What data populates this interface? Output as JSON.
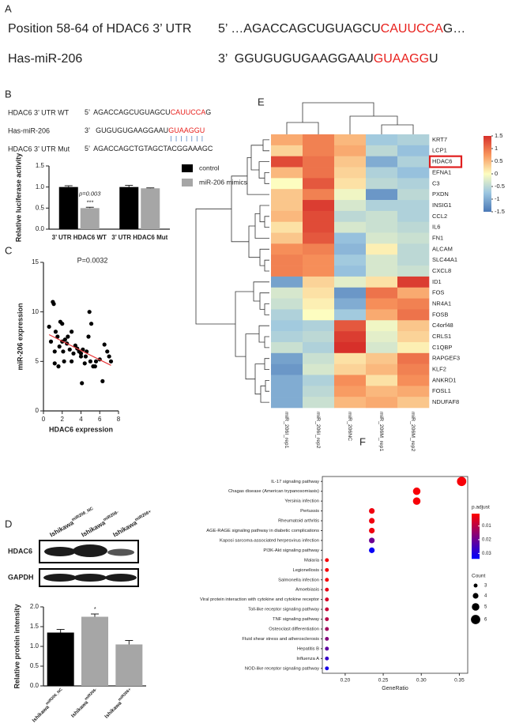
{
  "panel_labels": [
    "A",
    "B",
    "C",
    "D",
    "E",
    "F"
  ],
  "panel_a": {
    "rows": [
      {
        "name": "Position 58-64 of HDAC6 3’ UTR",
        "seq_pre": "5’ …AGACCAGCUGUAGCU",
        "seq_site": "CAUUCCA",
        "seq_post": "G…"
      },
      {
        "name": "Has-miR-206",
        "seq_pre": "3’  GGUGUGUGAAGGAAU",
        "seq_site": "GUAAGG",
        "seq_post": "U"
      }
    ]
  },
  "panel_b_sequences": {
    "rows": [
      {
        "name": "HDAC6 3’ UTR WT",
        "seq_pre": "5’  AGACCAGCUGUAGCU",
        "seq_site": "CAUUCCA",
        "seq_post": "G"
      },
      {
        "name": "Has-miR-206",
        "seq_pre": "3’   GUGUGUGAAGGAAU",
        "seq_site": "GUAAGGU"
      },
      {
        "name": "HDAC6 3’ UTR Mut",
        "seq_pre": "5’  AGACCAGCTGTAGCTACGGAAAGC"
      }
    ]
  },
  "blot": {
    "columns": [
      {
        "base": "Ishikawa",
        "sup": "miR206_NC"
      },
      {
        "base": "Ishikawa",
        "sup": "miR206-"
      },
      {
        "base": "Ishikawa",
        "sup": "miR206+"
      }
    ],
    "rows": [
      "HDAC6",
      "GAPDH"
    ]
  },
  "chart_data": [
    {
      "type": "bar",
      "ylabel": "Relative luciferase activity",
      "categories": [
        "3’ UTR HDAC6 WT",
        "3’ UTR HDAC6 Mut"
      ],
      "series": [
        {
          "name": "control",
          "color": "#000000",
          "values": [
            1.0,
            1.0
          ],
          "errors": [
            0.03,
            0.04
          ]
        },
        {
          "name": "miR-206 mimics",
          "color": "#a6a6a6",
          "values": [
            0.5,
            0.97
          ],
          "errors": [
            0.02,
            0.01
          ]
        }
      ],
      "ylim": [
        0,
        1.5
      ],
      "yticks": [
        {
          "value": 0,
          "label": "0.0"
        },
        {
          "value": 0.5,
          "label": "0.5"
        },
        {
          "value": 1,
          "label": "1.0"
        },
        {
          "value": 1.5,
          "label": "1.5"
        }
      ],
      "annotations": [
        {
          "text": "p=0.003",
          "category": 0,
          "series": 1
        },
        {
          "text": "***",
          "category": 0,
          "series": 1
        }
      ]
    },
    {
      "type": "scatter",
      "annotation": "P=0.0032",
      "xlabel": "HDAC6 expression",
      "ylabel": "miR-206 expression",
      "color": "#000000",
      "x": [
        1.0,
        1.1,
        0.6,
        0.8,
        1.2,
        1.3,
        1.5,
        1.7,
        1.8,
        2.0,
        2.0,
        2.1,
        2.2,
        1.2,
        1.6,
        2.3,
        2.5,
        2.6,
        2.8,
        3.0,
        3.0,
        3.2,
        3.4,
        3.6,
        3.8,
        4.0,
        4.0,
        4.2,
        4.4,
        4.5,
        4.6,
        4.8,
        4.9,
        5.0,
        5.1,
        5.3,
        5.5,
        5.6,
        6.0,
        6.3,
        6.5,
        6.8,
        7.0,
        7.2,
        4.1
      ],
      "y": [
        11.0,
        10.8,
        8.5,
        7.0,
        6.0,
        8.0,
        7.5,
        6.5,
        9.0,
        8.8,
        7.0,
        6.0,
        5.0,
        4.8,
        4.5,
        7.2,
        6.8,
        7.5,
        6.2,
        5.0,
        8.0,
        5.8,
        6.6,
        6.3,
        6.0,
        5.5,
        5.8,
        6.2,
        4.8,
        5.5,
        6.0,
        7.5,
        10.0,
        5.0,
        8.8,
        4.5,
        4.5,
        5.0,
        5.2,
        3.0,
        6.7,
        6.0,
        5.5,
        5.0,
        2.8
      ],
      "fit_line": {
        "x": [
          0.6,
          7.2
        ],
        "y": [
          7.7,
          4.6
        ],
        "color": "#e8393b"
      },
      "xlim": [
        0,
        8
      ],
      "xticks": [
        0,
        2,
        4,
        6,
        8
      ],
      "ylim": [
        0,
        15
      ],
      "yticks": [
        0,
        5,
        10,
        15
      ]
    },
    {
      "type": "bar",
      "ylabel": "Relative protein intensity",
      "categories": [
        {
          "base": "Ishikawa",
          "sup": "miR206_NC"
        },
        {
          "base": "Ishikawa",
          "sup": "miR206-"
        },
        {
          "base": "Ishikawa",
          "sup": "miR206+"
        }
      ],
      "series": [
        {
          "colors": [
            "#000000",
            "#a6a6a6",
            "#a6a6a6"
          ],
          "values": [
            1.35,
            1.75,
            1.05
          ],
          "errors": [
            0.08,
            0.07,
            0.1
          ]
        }
      ],
      "ylim": [
        0,
        2
      ],
      "yticks": [
        {
          "value": 0,
          "label": "0.0"
        },
        {
          "value": 0.5,
          "label": "0.5"
        },
        {
          "value": 1,
          "label": "1.0"
        },
        {
          "value": 1.5,
          "label": "1.5"
        },
        {
          "value": 2,
          "label": "2.0"
        }
      ],
      "annotations": [
        {
          "text": "*",
          "category": 1,
          "series": 0
        }
      ]
    },
    {
      "type": "heatmap",
      "columns": [
        "miR_206I_rep1",
        "miR_206I_rep2",
        "miR_206NC",
        "miR_206M_rep1",
        "miR_206M_rep2"
      ],
      "rows": [
        "KRT7",
        "LCP1",
        "HDAC6",
        "EFNA1",
        "C3",
        "PXDN",
        "INSIG1",
        "CCL2",
        "IL6",
        "FN1",
        "ALCAM",
        "SLC44A1",
        "CXCL8",
        "ID1",
        "FOS",
        "NR4A1",
        "FOSB",
        "C4orf48",
        "CRLS1",
        "C1QBP",
        "RAPGEF3",
        "KLF2",
        "ANKRD1",
        "FOSL1",
        "NDUFAF8"
      ],
      "values": [
        [
          0.6,
          0.9,
          0.5,
          -0.7,
          -0.6
        ],
        [
          0.3,
          0.9,
          0.6,
          -0.5,
          -0.8
        ],
        [
          1.3,
          1.0,
          0.4,
          -1.0,
          -0.6
        ],
        [
          0.5,
          1.0,
          0.3,
          -0.6,
          -0.8
        ],
        [
          0.0,
          1.2,
          0.2,
          -0.5,
          -0.6
        ],
        [
          0.4,
          0.9,
          -0.1,
          -1.2,
          -0.5
        ],
        [
          0.4,
          1.4,
          -0.3,
          -0.6,
          -0.6
        ],
        [
          0.5,
          1.3,
          -0.5,
          -0.4,
          -0.6
        ],
        [
          0.2,
          1.3,
          -0.3,
          -0.4,
          -0.5
        ],
        [
          0.4,
          1.2,
          -0.8,
          -0.3,
          -0.4
        ],
        [
          0.8,
          0.9,
          -0.9,
          0.1,
          -0.5
        ],
        [
          0.9,
          0.8,
          -0.7,
          -0.3,
          -0.5
        ],
        [
          0.9,
          0.8,
          -0.8,
          -0.3,
          -0.4
        ],
        [
          -1.1,
          0.3,
          -0.2,
          0.2,
          1.4
        ],
        [
          -0.3,
          0.2,
          -1.2,
          1.0,
          0.6
        ],
        [
          -0.4,
          0.1,
          -1.0,
          0.8,
          0.9
        ],
        [
          -0.6,
          0.0,
          -0.7,
          0.6,
          1.0
        ],
        [
          -0.7,
          -0.6,
          1.2,
          -0.1,
          0.4
        ],
        [
          -0.6,
          -0.5,
          1.4,
          -0.2,
          0.3
        ],
        [
          -0.4,
          -0.6,
          1.5,
          -0.3,
          0.1
        ],
        [
          -1.1,
          -0.4,
          0.2,
          0.4,
          1.0
        ],
        [
          -1.2,
          -0.3,
          0.3,
          0.5,
          0.9
        ],
        [
          -1.0,
          -0.6,
          0.8,
          0.2,
          0.8
        ],
        [
          -1.0,
          -0.5,
          0.7,
          0.5,
          0.6
        ],
        [
          -1.0,
          -0.4,
          0.5,
          0.6,
          0.4
        ]
      ],
      "clim": [
        -1.5,
        1.5
      ],
      "cticks": [
        1.5,
        1,
        0.5,
        0,
        -0.5,
        -1,
        -1.5
      ],
      "colormap": [
        "#4a78b6",
        "#9cc6e0",
        "#fdfdc0",
        "#f8955c",
        "#d7302a"
      ],
      "highlight_row": 2,
      "highlight_color": "#e01f1f"
    },
    {
      "type": "dot",
      "categories": [
        "IL-17 signaling pathway",
        "Chagas disease (American trypanosomiasis)",
        "Yersinia infection",
        "Pertussis",
        "Rheumatoid arthritis",
        "AGE-RAGE signaling pathway in diabetic complications",
        "Kaposi sarcoma-associated herpesvirus infection",
        "PI3K-Akt signaling pathway",
        "Malaria",
        "Legionellosis",
        "Salmonella infection",
        "Amoebiasis",
        "Viral protein interaction with cytokine and cytokine receptor",
        "Toll-like receptor signaling pathway",
        "TNF signaling pathway",
        "Osteoclast differentiation",
        "Fluid shear stress and atherosclerosis",
        "Hepatitis B",
        "Influenza A",
        "NOD-like receptor signaling pathway"
      ],
      "x": [
        0.353,
        0.294,
        0.294,
        0.235,
        0.235,
        0.235,
        0.235,
        0.235,
        0.176,
        0.176,
        0.176,
        0.176,
        0.176,
        0.176,
        0.176,
        0.176,
        0.176,
        0.176,
        0.176,
        0.176
      ],
      "counts": [
        6,
        5,
        5,
        4,
        4,
        4,
        4,
        4,
        3,
        3,
        3,
        3,
        3,
        3,
        3,
        3,
        3,
        3,
        3,
        3
      ],
      "padj": [
        0.002,
        0.002,
        0.002,
        0.003,
        0.003,
        0.003,
        0.02,
        0.033,
        0.002,
        0.002,
        0.002,
        0.004,
        0.006,
        0.008,
        0.01,
        0.013,
        0.017,
        0.022,
        0.027,
        0.031
      ],
      "xlabel": "GeneRatio",
      "xlim": [
        0.17,
        0.361
      ],
      "xticks": [
        {
          "value": 0.2,
          "label": "0.20"
        },
        {
          "value": 0.25,
          "label": "0.25"
        },
        {
          "value": 0.3,
          "label": "0.30"
        },
        {
          "value": 0.35,
          "label": "0.35"
        }
      ],
      "color_title": "p.adjust",
      "color_lim": [
        0.001,
        0.034
      ],
      "color_ticks": [
        0.01,
        0.02,
        0.03
      ],
      "colormap": [
        "#ff0000",
        "#0000ff"
      ],
      "size_title": "Count",
      "size_ticks": [
        3,
        4,
        5,
        6
      ],
      "size_color": "#000000"
    }
  ]
}
